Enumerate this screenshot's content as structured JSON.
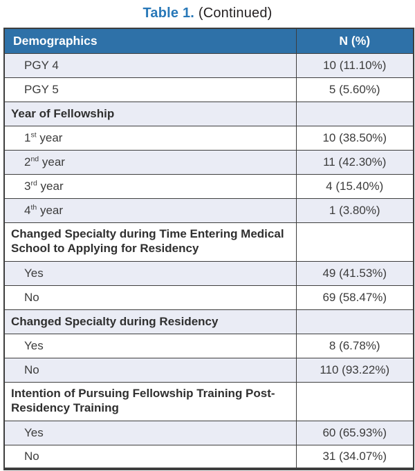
{
  "title": {
    "table_label": "Table 1.",
    "continued_label": "(Continued)"
  },
  "colors": {
    "header_bg": "#2e71a8",
    "header_text": "#ffffff",
    "shaded_row_bg": "#eaecf5",
    "plain_row_bg": "#ffffff",
    "border": "#3d3d3d",
    "title_accent": "#2878b8",
    "body_text": "#3b3b3b"
  },
  "table": {
    "columns": [
      {
        "label": "Demographics"
      },
      {
        "label": "N (%)"
      }
    ],
    "rows": [
      {
        "type": "data",
        "shaded": true,
        "label": "PGY 4",
        "value": "10 (11.10%)"
      },
      {
        "type": "data",
        "shaded": false,
        "label": "PGY 5",
        "value": "5 (5.60%)"
      },
      {
        "type": "section",
        "shaded": true,
        "two_line": false,
        "label": "Year of Fellowship",
        "value": ""
      },
      {
        "type": "data",
        "shaded": false,
        "label_parts": {
          "base": "1",
          "sup": "st",
          "rest": " year"
        },
        "label": "1st year",
        "value": "10 (38.50%)"
      },
      {
        "type": "data",
        "shaded": true,
        "label_parts": {
          "base": "2",
          "sup": "nd",
          "rest": " year"
        },
        "label": "2nd year",
        "value": "11 (42.30%)"
      },
      {
        "type": "data",
        "shaded": false,
        "label_parts": {
          "base": "3",
          "sup": "rd",
          "rest": " year"
        },
        "label": "3rd year",
        "value": "4 (15.40%)"
      },
      {
        "type": "data",
        "shaded": true,
        "label_parts": {
          "base": "4",
          "sup": "th",
          "rest": " year"
        },
        "label": "4th year",
        "value": "1 (3.80%)"
      },
      {
        "type": "section",
        "shaded": false,
        "two_line": true,
        "label": "Changed Specialty during Time Entering Medical School to Applying for Residency",
        "value": ""
      },
      {
        "type": "data",
        "shaded": true,
        "label": "Yes",
        "value": "49 (41.53%)"
      },
      {
        "type": "data",
        "shaded": false,
        "label": "No",
        "value": "69 (58.47%)"
      },
      {
        "type": "section",
        "shaded": true,
        "two_line": false,
        "label": "Changed Specialty during Residency",
        "value": ""
      },
      {
        "type": "data",
        "shaded": false,
        "label": "Yes",
        "value": "8 (6.78%)"
      },
      {
        "type": "data",
        "shaded": true,
        "label": "No",
        "value": "110 (93.22%)"
      },
      {
        "type": "section",
        "shaded": false,
        "two_line": true,
        "label": "Intention of Pursuing Fellowship Training Post-Residency Training",
        "value": ""
      },
      {
        "type": "data",
        "shaded": true,
        "label": "Yes",
        "value": "60 (65.93%)"
      },
      {
        "type": "data",
        "shaded": false,
        "label": "No",
        "value": "31 (34.07%)"
      }
    ]
  }
}
